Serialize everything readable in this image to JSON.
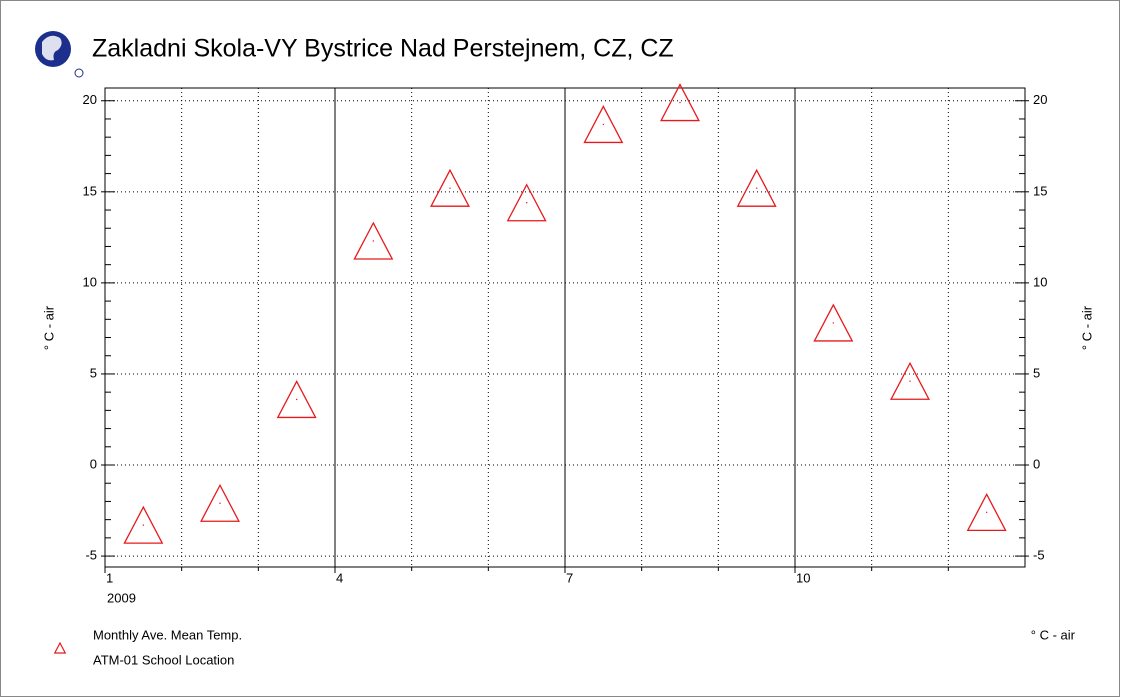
{
  "chart_data": {
    "type": "scatter",
    "title": "Zakladni Skola-VY Bystrice Nad Perstejnem, CZ, CZ",
    "ylabel": "° C - air",
    "y2label": "° C - air",
    "series": [
      {
        "name": "Monthly Ave. Mean Temp.",
        "subname": "ATM-01 School Location",
        "unit": "° C - air",
        "color": "#e8191b",
        "marker": "triangle",
        "x": [
          1.5,
          2.5,
          3.5,
          4.5,
          5.5,
          6.5,
          7.5,
          8.5,
          9.5,
          10.5,
          11.5,
          12.5
        ],
        "values": [
          -3.3,
          -2.1,
          3.6,
          12.3,
          15.2,
          14.4,
          18.7,
          19.9,
          15.2,
          7.8,
          4.6,
          -2.6
        ]
      }
    ],
    "xlim": [
      1,
      13
    ],
    "xticks": [
      1,
      4,
      7,
      10
    ],
    "x_year_label": "2009",
    "xminor": [
      2,
      3,
      5,
      6,
      8,
      9,
      11,
      12
    ],
    "ylim": [
      -5.6,
      20.7
    ],
    "yticks": [
      -5,
      0,
      5,
      10,
      15,
      20
    ],
    "y2lim": [
      -5.6,
      20.7
    ],
    "y2ticks": [
      -5,
      0,
      5,
      10,
      15,
      20
    ],
    "yminor": [
      -4,
      -3,
      -2,
      -1,
      1,
      2,
      3,
      4,
      6,
      7,
      8,
      9,
      11,
      12,
      13,
      14,
      16,
      17,
      18,
      19
    ],
    "grid": true
  }
}
